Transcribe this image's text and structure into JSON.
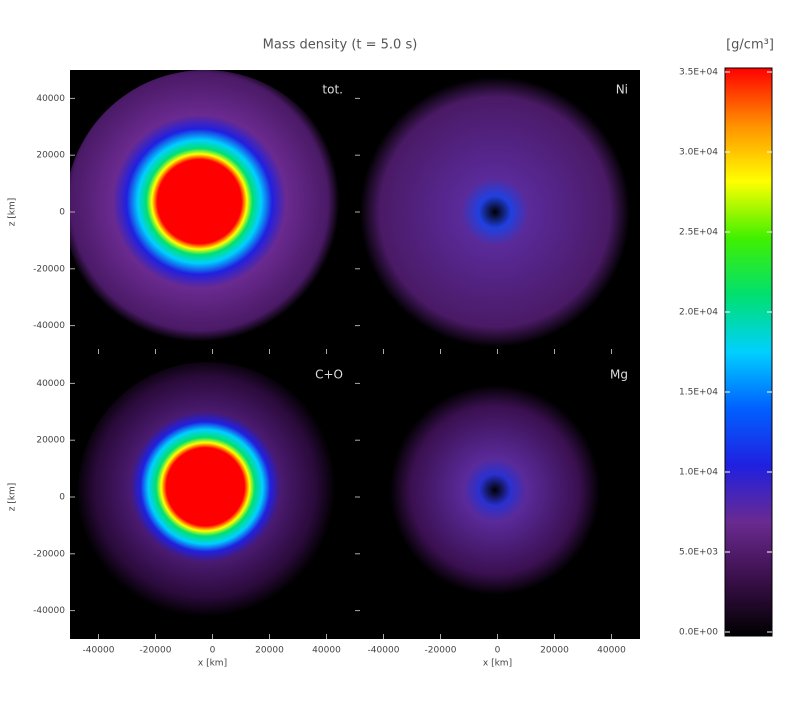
{
  "chart_data": {
    "type": "image-panels",
    "title": "Mass density (t = 5.0 s)",
    "xlabel": "x [km]",
    "ylabel": "z [km]",
    "panels": [
      {
        "label": "tot."
      },
      {
        "label": "Ni"
      },
      {
        "label": "C+O"
      },
      {
        "label": "Mg"
      }
    ],
    "xlim": [
      -50000,
      50000
    ],
    "xticks": [
      -40000,
      -20000,
      0,
      20000,
      40000
    ],
    "ylim": [
      -50000,
      50000
    ],
    "yticks": [
      -40000,
      -20000,
      0,
      20000,
      40000
    ],
    "colorbar": {
      "label": "[g/cm³]",
      "lim": [
        0,
        35000
      ],
      "ticks": [
        {
          "value": 0,
          "label": "0.0E+00"
        },
        {
          "value": 5000,
          "label": "5.0E+03"
        },
        {
          "value": 10000,
          "label": "1.0E+04"
        },
        {
          "value": 15000,
          "label": "1.5E+04"
        },
        {
          "value": 20000,
          "label": "2.0E+04"
        },
        {
          "value": 25000,
          "label": "2.5E+04"
        },
        {
          "value": 30000,
          "label": "3.0E+04"
        },
        {
          "value": 35000,
          "label": "3.5E+04"
        }
      ],
      "colormap": [
        "#000000",
        "#3a0f4a",
        "#6a2a90",
        "#2020e0",
        "#0060ff",
        "#00d0ff",
        "#00e070",
        "#40f000",
        "#ffff00",
        "#ff9000",
        "#ff0000"
      ]
    }
  }
}
